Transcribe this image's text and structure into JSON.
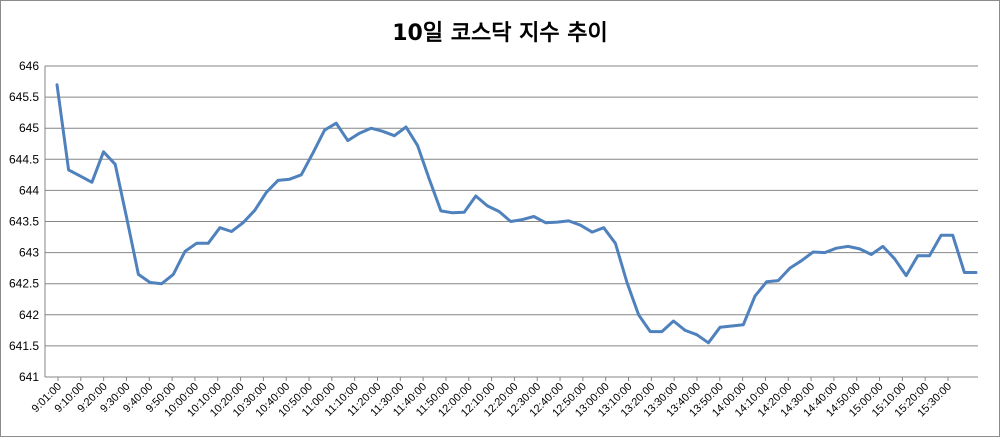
{
  "chart_data": {
    "type": "line",
    "title": "10일 코스닥 지수 추이",
    "xlabel": "",
    "ylabel": "",
    "ylim": [
      641,
      646
    ],
    "yticks": [
      "641",
      "641.5",
      "642",
      "642.5",
      "643",
      "643.5",
      "644",
      "644.5",
      "645",
      "645.5",
      "646"
    ],
    "xticks": [
      "9:01:00",
      "9:10:00",
      "9:20:00",
      "9:30:00",
      "9:40:00",
      "9:50:00",
      "10:00:00",
      "10:10:00",
      "10:20:00",
      "10:30:00",
      "10:40:00",
      "10:50:00",
      "11:00:00",
      "11:10:00",
      "11:20:00",
      "11:30:00",
      "11:40:00",
      "11:50:00",
      "12:00:00",
      "12:10:00",
      "12:20:00",
      "12:30:00",
      "12:40:00",
      "12:50:00",
      "13:00:00",
      "13:10:00",
      "13:20:00",
      "13:30:00",
      "13:40:00",
      "13:50:00",
      "14:00:00",
      "14:10:00",
      "14:20:00",
      "14:30:00",
      "14:40:00",
      "14:50:00",
      "15:00:00",
      "15:10:00",
      "15:20:00",
      "15:30:00"
    ],
    "grid": true,
    "color": "#4f81bd",
    "series": [
      {
        "values": [
          645.7,
          644.33,
          644.23,
          644.13,
          644.62,
          644.42,
          643.55,
          642.65,
          642.52,
          642.5,
          642.65,
          643.02,
          643.15,
          643.15,
          643.4,
          643.34,
          643.48,
          643.68,
          643.97,
          644.16,
          644.18,
          644.25,
          644.6,
          644.97,
          645.08,
          644.8,
          644.92,
          645.0,
          644.95,
          644.88,
          645.02,
          644.72,
          644.18,
          643.67,
          643.64,
          643.65,
          643.91,
          643.75,
          643.66,
          643.5,
          643.53,
          643.58,
          643.48,
          643.49,
          643.51,
          643.44,
          643.33,
          643.4,
          643.15,
          642.52,
          642.0,
          641.73,
          641.73,
          641.9,
          641.75,
          641.68,
          641.55,
          641.8,
          641.82,
          641.84,
          642.3,
          642.53,
          642.55,
          642.75,
          642.87,
          643.01,
          643.0,
          643.07,
          643.1,
          643.06,
          642.97,
          643.1,
          642.9,
          642.63,
          642.95,
          642.95,
          643.28,
          643.28,
          642.68,
          642.68
        ]
      }
    ]
  }
}
